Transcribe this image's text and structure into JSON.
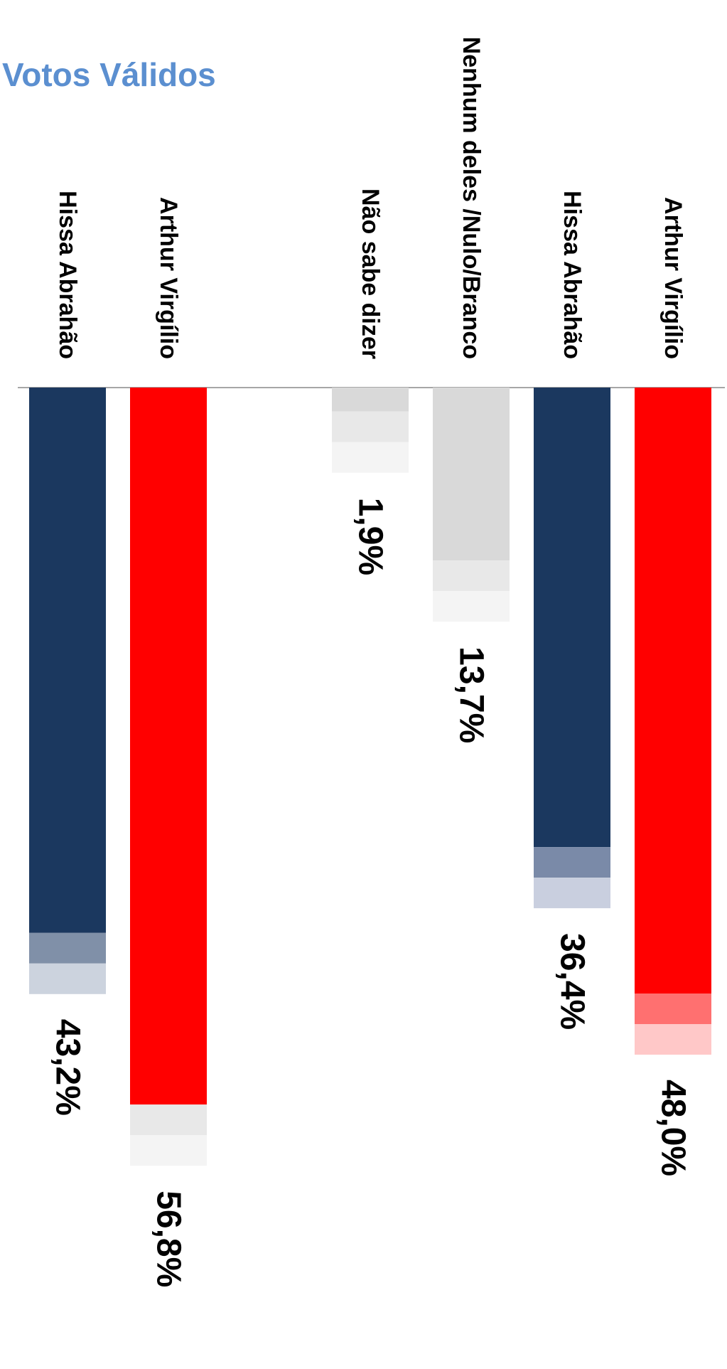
{
  "title": "Votos Válidos",
  "chart_data": {
    "type": "bar",
    "orientation": "rotated-vertical",
    "groups": [
      {
        "title": "",
        "bars": [
          {
            "category": "Arthur Virgílio",
            "value": 48.0,
            "label": "48,0%",
            "color": "#ff0000",
            "band_colors": [
              "#ff7070",
              "#ffc8c8"
            ]
          },
          {
            "category": "Hissa Abrahão",
            "value": 36.4,
            "label": "36,4%",
            "color": "#1b385f",
            "band_colors": [
              "#7a8aa8",
              "#c9cfdf"
            ]
          },
          {
            "category": "Nenhum deles /Nulo/Branco",
            "value": 13.7,
            "label": "13,7%",
            "color": "#d9d9d9",
            "band_colors": [
              "#e8e8e8",
              "#f4f4f4"
            ]
          },
          {
            "category": "Não sabe dizer",
            "value": 1.9,
            "label": "1,9%",
            "color": "#d9d9d9",
            "band_colors": [
              "#e8e8e8",
              "#f4f4f4"
            ]
          }
        ]
      },
      {
        "title": "Votos Válidos",
        "bars": [
          {
            "category": "Arthur Virgílio",
            "value": 56.8,
            "label": "56,8%",
            "color": "#ff0000",
            "band_colors": [
              "#e8e8e8",
              "#f4f4f4"
            ]
          },
          {
            "category": "Hissa Abrahão",
            "value": 43.2,
            "label": "43,2%",
            "color": "#1b385f",
            "band_colors": [
              "#8090a8",
              "#ccd3de"
            ]
          }
        ]
      }
    ]
  }
}
